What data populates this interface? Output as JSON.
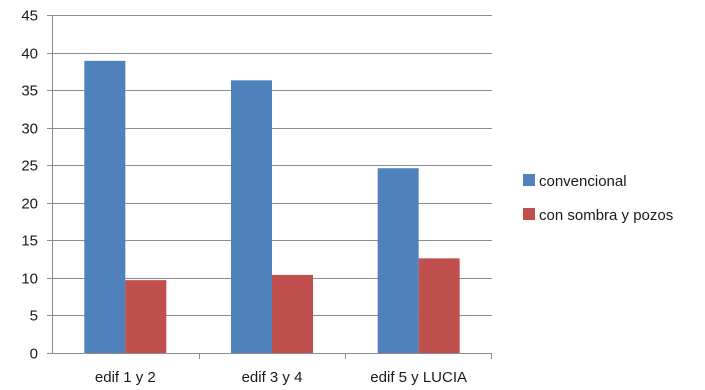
{
  "chart_data": {
    "type": "bar",
    "categories": [
      "edif 1 y 2",
      "edif 3 y 4",
      "edif 5 y LUCIA"
    ],
    "series": [
      {
        "name": "convencional",
        "values": [
          38.9,
          36.3,
          24.6
        ],
        "color": "#4f81bd"
      },
      {
        "name": "con sombra y pozos",
        "values": [
          9.7,
          10.4,
          12.6
        ],
        "color": "#c0504d"
      }
    ],
    "title": "",
    "xlabel": "",
    "ylabel": "",
    "ylim": [
      0,
      45
    ],
    "yticks": [
      0,
      5,
      10,
      15,
      20,
      25,
      30,
      35,
      40,
      45
    ],
    "grid": true,
    "legend_position": "right"
  }
}
